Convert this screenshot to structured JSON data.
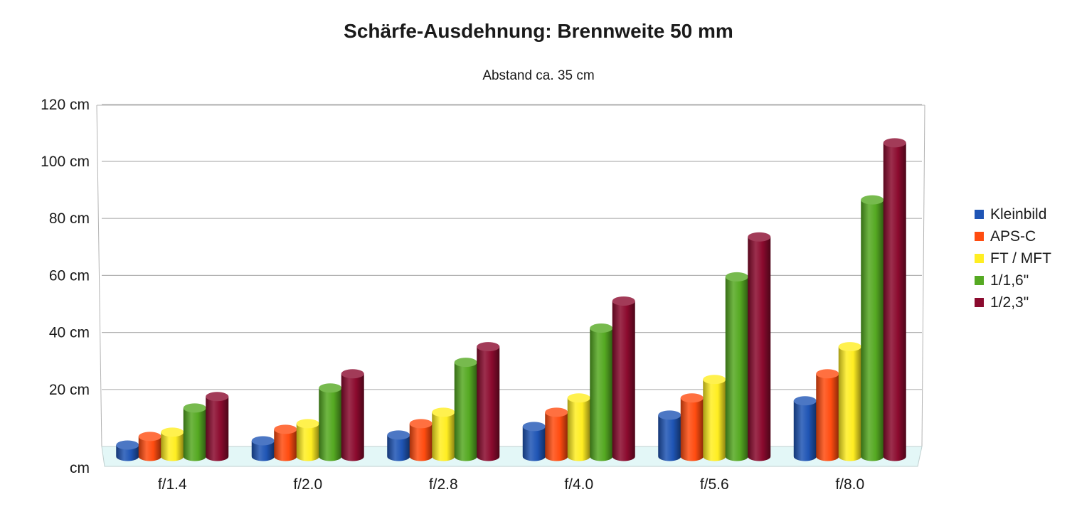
{
  "chart_data": {
    "type": "bar",
    "title": "Schärfe-Ausdehnung: Brennweite 50 mm",
    "subtitle": "Abstand ca. 35 cm",
    "categories": [
      "f/1.4",
      "f/2.0",
      "f/2.8",
      "f/4.0",
      "f/5.6",
      "f/8.0"
    ],
    "series": [
      {
        "name": "Kleinbild",
        "color": "#1f55b5",
        "values": [
          4,
          5.5,
          7.5,
          10.5,
          14.5,
          19.5
        ]
      },
      {
        "name": "APS-C",
        "color": "#ff4c10",
        "values": [
          7,
          9.5,
          11.5,
          15.5,
          20.5,
          29
        ]
      },
      {
        "name": "FT / MFT",
        "color": "#ffee22",
        "values": [
          8.5,
          11.5,
          15.5,
          20.5,
          27,
          38.5
        ]
      },
      {
        "name": "1/1,6\"",
        "color": "#55a922",
        "values": [
          17,
          24,
          33,
          45,
          63,
          90
        ]
      },
      {
        "name": "1/2,3\"",
        "color": "#8b0a2e",
        "values": [
          21,
          29,
          38.5,
          54.5,
          77,
          110
        ]
      }
    ],
    "yticks": [
      "cm",
      "20 cm",
      "40 cm",
      "60 cm",
      "80 cm",
      "100 cm",
      "120 cm"
    ],
    "ylim": [
      0,
      120
    ],
    "grid": true,
    "legend": "right",
    "chart_type_3d": "cylinder"
  }
}
